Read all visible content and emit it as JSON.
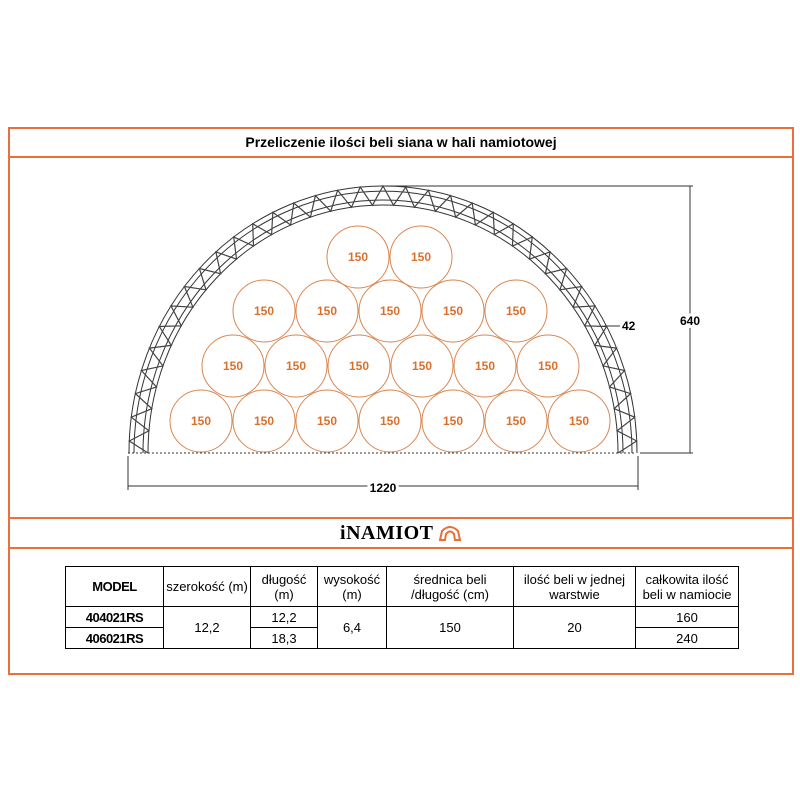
{
  "title": "Przeliczenie ilości beli siana w hali namiotowej",
  "diagram": {
    "bale_rows": [
      [
        "150",
        "150"
      ],
      [
        "150",
        "150",
        "150",
        "150",
        "150"
      ],
      [
        "150",
        "150",
        "150",
        "150",
        "150",
        "150"
      ],
      [
        "150",
        "150",
        "150",
        "150",
        "150",
        "150",
        "150"
      ]
    ],
    "dim_width": "1220",
    "dim_height": "640",
    "dim_truss": "42",
    "colors": {
      "frame": "#e8703a",
      "bale": "#d9864f",
      "bale_text": "#d9702c"
    }
  },
  "logo": "iNAMIOT",
  "table": {
    "headers": [
      "MODEL",
      "szerokość (m)",
      "długość (m)",
      "wysokość (m)",
      "średnica beli /długość (cm)",
      "ilość beli w jednej warstwie",
      "całkowita ilość beli w namiocie"
    ],
    "rows": [
      {
        "model": "404021RS",
        "length": "12,2",
        "total": "160"
      },
      {
        "model": "406021RS",
        "length": "18,3",
        "total": "240"
      }
    ],
    "width": "12,2",
    "height": "6,4",
    "bale": "150",
    "per_layer": "20"
  }
}
